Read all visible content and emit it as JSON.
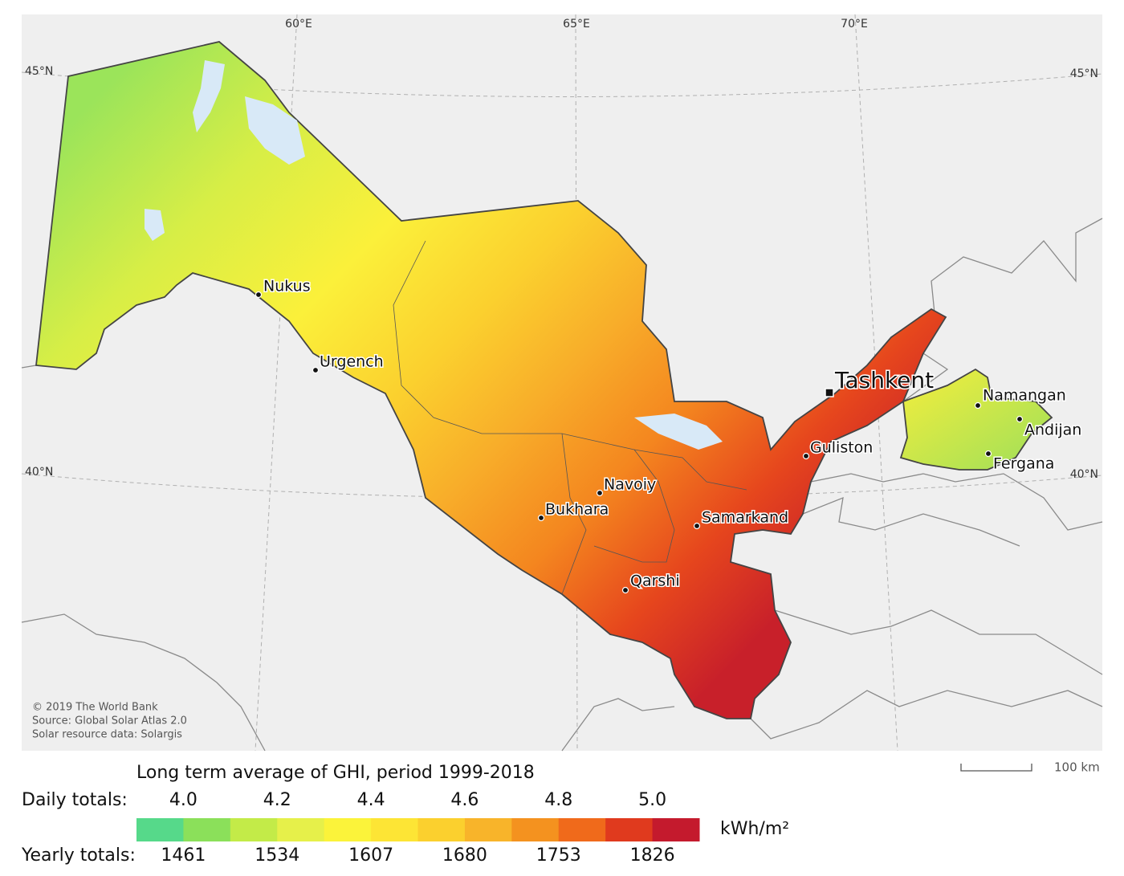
{
  "map": {
    "graticule": {
      "lon_labels": [
        "60°E",
        "65°E",
        "70°E"
      ],
      "lat_labels": [
        "45°N",
        "40°N"
      ]
    },
    "capital": "Tashkent",
    "cities": [
      "Nukus",
      "Urgench",
      "Bukhara",
      "Navoiy",
      "Samarkand",
      "Qarshi",
      "Guliston",
      "Namangan",
      "Andijan",
      "Fergana"
    ],
    "credits": [
      "© 2019 The World Bank",
      "Source: Global Solar Atlas 2.0",
      "Solar resource data: Solargis"
    ],
    "scale_bar": "100 km"
  },
  "legend": {
    "title": "Long term average of GHI, period 1999-2018",
    "daily_label": "Daily totals:",
    "daily_ticks": [
      "4.0",
      "4.2",
      "4.4",
      "4.6",
      "4.8",
      "5.0"
    ],
    "yearly_label": "Yearly totals:",
    "yearly_ticks": [
      "1461",
      "1534",
      "1607",
      "1680",
      "1753",
      "1826"
    ],
    "unit": "kWh/m²",
    "colors": [
      "#56d98a",
      "#8be05a",
      "#c3eb48",
      "#e6f04a",
      "#fbf33a",
      "#fde535",
      "#fbd02e",
      "#f8b42a",
      "#f4921f",
      "#f06a1b",
      "#e03a1e",
      "#c41a2d"
    ]
  }
}
